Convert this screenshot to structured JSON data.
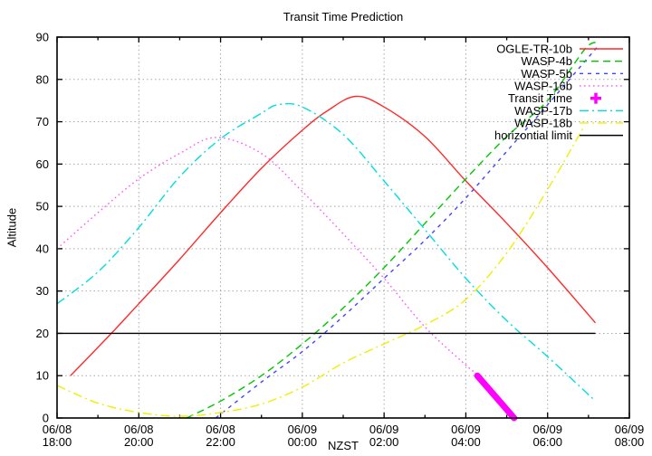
{
  "chart_data": {
    "type": "line",
    "title": "Transit Time Prediction",
    "xlabel": "NZST",
    "ylabel": "Altitude",
    "ylim": [
      0,
      90
    ],
    "y_ticks": [
      0,
      10,
      20,
      30,
      40,
      50,
      60,
      70,
      80,
      90
    ],
    "x_axis": {
      "range": [
        0,
        14
      ],
      "unit": "hours after 06/08 18:00",
      "major_tick_every_h": 2,
      "minor_tick_every_h": 1
    },
    "x_ticks": [
      {
        "h": 0,
        "date": "06/08",
        "time": "18:00"
      },
      {
        "h": 2,
        "date": "06/08",
        "time": "20:00"
      },
      {
        "h": 4,
        "date": "06/08",
        "time": "22:00"
      },
      {
        "h": 6,
        "date": "06/09",
        "time": "00:00"
      },
      {
        "h": 8,
        "date": "06/09",
        "time": "02:00"
      },
      {
        "h": 10,
        "date": "06/09",
        "time": "04:00"
      },
      {
        "h": 12,
        "date": "06/09",
        "time": "06:00"
      },
      {
        "h": 14,
        "date": "06/09",
        "time": "08:00"
      }
    ],
    "grid": true,
    "grid_color": "#a9a9a9",
    "legend_position": "top-right-inside",
    "series": [
      {
        "name": "OGLE-TR-10b",
        "color": "#ff2a2a",
        "style": "solid",
        "points": [
          [
            0.33,
            10
          ],
          [
            1.33,
            20
          ],
          [
            2,
            27
          ],
          [
            3,
            37.5
          ],
          [
            4,
            48.5
          ],
          [
            5,
            59
          ],
          [
            6,
            68
          ],
          [
            6.6,
            72.5
          ],
          [
            7.3,
            76
          ],
          [
            8,
            73.5
          ],
          [
            9,
            66.5
          ],
          [
            10,
            56
          ],
          [
            11,
            46
          ],
          [
            12,
            35.5
          ],
          [
            13.17,
            22.5
          ]
        ]
      },
      {
        "name": "WASP-4b",
        "color": "#00c800",
        "style": "dash",
        "points": [
          [
            3.17,
            0
          ],
          [
            4,
            4
          ],
          [
            5,
            10
          ],
          [
            6,
            17.5
          ],
          [
            7,
            26
          ],
          [
            8,
            35.5
          ],
          [
            9,
            46
          ],
          [
            10,
            56.5
          ],
          [
            11,
            66.5
          ],
          [
            12,
            75
          ],
          [
            12.9,
            87
          ],
          [
            13.2,
            88.8
          ]
        ]
      },
      {
        "name": "WASP-5b",
        "color": "#4444ff",
        "style": "dash2",
        "points": [
          [
            3.88,
            0
          ],
          [
            5,
            8.5
          ],
          [
            6,
            15.7
          ],
          [
            7,
            24
          ],
          [
            8,
            33
          ],
          [
            9,
            42
          ],
          [
            10,
            52
          ],
          [
            11,
            63
          ],
          [
            12,
            74
          ],
          [
            13.2,
            87.5
          ]
        ]
      },
      {
        "name": "WASP-16b",
        "color": "#ff55ff",
        "style": "dot",
        "points": [
          [
            0,
            40
          ],
          [
            1,
            48.5
          ],
          [
            2,
            56.5
          ],
          [
            3,
            62.5
          ],
          [
            3.9,
            66.3
          ],
          [
            5,
            62.5
          ],
          [
            6,
            53.5
          ],
          [
            7,
            43.5
          ],
          [
            8,
            33
          ],
          [
            9,
            21.5
          ],
          [
            10,
            12.5
          ],
          [
            10.28,
            10
          ],
          [
            11.18,
            0
          ]
        ]
      },
      {
        "name": "Transit Time",
        "color": "#ff00ff",
        "style": "thick",
        "legend_marker": "plus",
        "points": [
          [
            10.28,
            10
          ],
          [
            11.18,
            0
          ]
        ]
      },
      {
        "name": "WASP-17b",
        "color": "#00dede",
        "style": "dashdot",
        "points": [
          [
            0,
            27
          ],
          [
            1,
            34.5
          ],
          [
            2,
            45
          ],
          [
            3,
            57
          ],
          [
            4,
            66
          ],
          [
            5,
            72
          ],
          [
            5.4,
            74
          ],
          [
            6,
            73.5
          ],
          [
            7,
            67
          ],
          [
            8,
            56
          ],
          [
            9,
            44.5
          ],
          [
            10,
            33
          ],
          [
            11,
            23
          ],
          [
            12,
            14.5
          ],
          [
            13.17,
            4
          ]
        ]
      },
      {
        "name": "WASP-18b",
        "color": "#efef00",
        "style": "dashdot",
        "points": [
          [
            0,
            7.7
          ],
          [
            1,
            3.5
          ],
          [
            2,
            1.3
          ],
          [
            3,
            0.4
          ],
          [
            4,
            1.3
          ],
          [
            5,
            3.3
          ],
          [
            6,
            7.3
          ],
          [
            7,
            13
          ],
          [
            8,
            17.5
          ],
          [
            9,
            22
          ],
          [
            10,
            28
          ],
          [
            11,
            39
          ],
          [
            12,
            54
          ],
          [
            12.9,
            69
          ]
        ]
      },
      {
        "name": "horizontial limit",
        "color": "#000000",
        "style": "solid",
        "points": [
          [
            0,
            20
          ],
          [
            13.17,
            20
          ]
        ]
      }
    ]
  }
}
